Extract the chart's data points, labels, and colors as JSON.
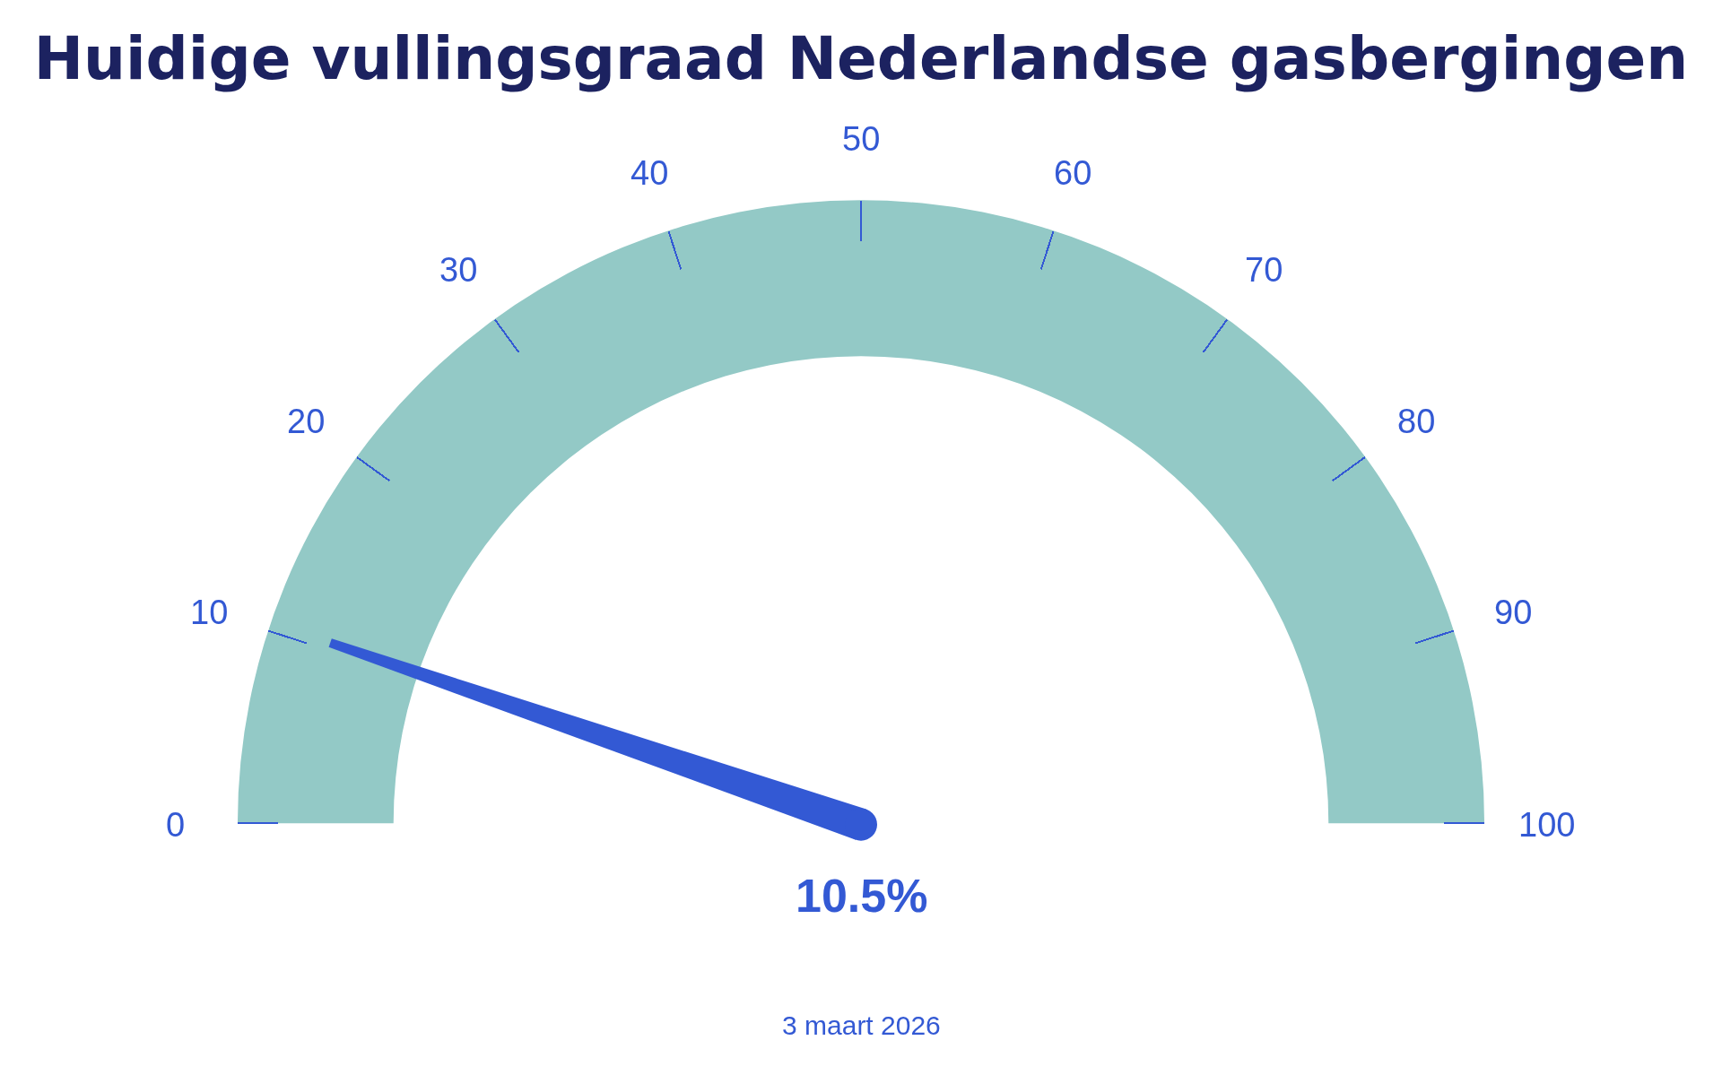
{
  "chart_data": {
    "type": "other",
    "title": "Huidige vullingsgraad Nederlandse gasbergingen",
    "color": "#93c9c6",
    "series": [
      {
        "values": [
          10.5
        ],
        "value_labels": [
          "10.5%"
        ],
        "color": "#3359d4"
      }
    ],
    "annotations": [
      {
        "text": "0"
      },
      {
        "text": "10"
      },
      {
        "text": "20"
      },
      {
        "text": "30"
      },
      {
        "text": "40"
      },
      {
        "text": "50"
      },
      {
        "text": "60"
      },
      {
        "text": "70"
      },
      {
        "text": "80"
      },
      {
        "text": "90"
      },
      {
        "text": "100"
      },
      "3 maart 2026"
    ]
  }
}
